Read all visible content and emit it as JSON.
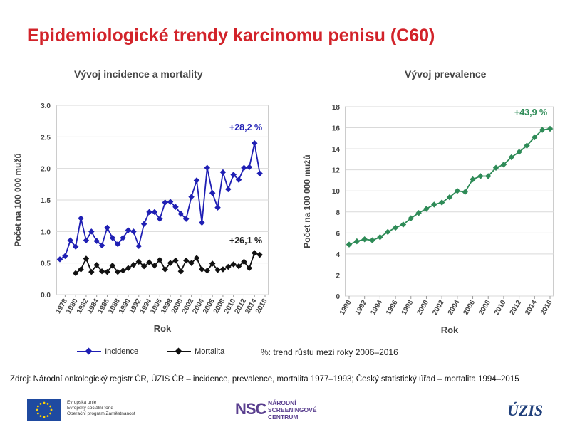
{
  "page": {
    "title": "Epidemiologické trendy karcinomu penisu (C60)",
    "note": "%: trend růstu mezi roky 2006–2016",
    "source": "Zdroj: Národní onkologický registr ČR, ÚZIS ČR – incidence, prevalence, mortalita 1977–1993; Český statistický úřad – mortalita 1994–2015",
    "logos": {
      "eu_lines": [
        "Evropská unie",
        "Evropský sociální fond",
        "Operační program Zaměstnanost"
      ],
      "nsc_mark": "NSC",
      "nsc_lines": [
        "NÁRODNÍ",
        "SCREENINGOVÉ",
        "CENTRUM"
      ],
      "uzis": "ÚZIS"
    }
  },
  "chart_data": [
    {
      "type": "line",
      "title": "Vývoj incidence a mortality",
      "xlabel": "Rok",
      "ylabel": "Počet na 100 000 mužů",
      "ylim": [
        0,
        3
      ],
      "yticks": [
        "0.0",
        "0.5",
        "1.0",
        "1.5",
        "2.0",
        "2.5",
        "3.0"
      ],
      "x": [
        1977,
        1978,
        1979,
        1980,
        1981,
        1982,
        1983,
        1984,
        1985,
        1986,
        1987,
        1988,
        1989,
        1990,
        1991,
        1992,
        1993,
        1994,
        1995,
        1996,
        1997,
        1998,
        1999,
        2000,
        2001,
        2002,
        2003,
        2004,
        2005,
        2006,
        2007,
        2008,
        2009,
        2010,
        2011,
        2012,
        2013,
        2014,
        2015,
        2016
      ],
      "xtick_labels": [
        "1978",
        "1980",
        "1982",
        "1984",
        "1986",
        "1988",
        "1990",
        "1992",
        "1994",
        "1996",
        "1998",
        "2000",
        "2002",
        "2004",
        "2006",
        "2008",
        "2010",
        "2012",
        "2014",
        "2016"
      ],
      "series": [
        {
          "name": "Incidence",
          "color": "#1f1fb4",
          "values": [
            0.56,
            0.61,
            0.86,
            0.76,
            1.21,
            0.86,
            1.0,
            0.85,
            0.78,
            1.06,
            0.9,
            0.8,
            0.9,
            1.02,
            1.0,
            0.77,
            1.12,
            1.31,
            1.31,
            1.2,
            1.46,
            1.47,
            1.39,
            1.28,
            1.2,
            1.55,
            1.81,
            1.14,
            2.01,
            1.61,
            1.38,
            1.94,
            1.67,
            1.9,
            1.82,
            2.01,
            2.02,
            2.4,
            1.92,
            null
          ]
        },
        {
          "name": "Mortalita",
          "color": "#111111",
          "values": [
            null,
            null,
            null,
            0.34,
            0.4,
            0.57,
            0.36,
            0.47,
            0.37,
            0.36,
            0.46,
            0.36,
            0.38,
            0.42,
            0.47,
            0.52,
            0.45,
            0.51,
            0.46,
            0.55,
            0.4,
            0.5,
            0.54,
            0.37,
            0.54,
            0.5,
            0.58,
            0.4,
            0.38,
            0.49,
            0.39,
            0.4,
            0.44,
            0.48,
            0.45,
            0.52,
            0.42,
            0.66,
            0.63,
            null
          ]
        }
      ],
      "annotations": [
        {
          "text": "+28,2 %",
          "color": "#1f1fb4"
        },
        {
          "text": "+26,1 %",
          "color": "#222222"
        }
      ],
      "legend": "bottom"
    },
    {
      "type": "line",
      "title": "Vývoj prevalence",
      "xlabel": "Rok",
      "ylabel": "Počet na 100 000 mužů",
      "ylim": [
        0,
        18
      ],
      "yticks": [
        "0",
        "2",
        "4",
        "6",
        "8",
        "10",
        "12",
        "14",
        "16",
        "18"
      ],
      "x": [
        1990,
        1991,
        1992,
        1993,
        1994,
        1995,
        1996,
        1997,
        1998,
        1999,
        2000,
        2001,
        2002,
        2003,
        2004,
        2005,
        2006,
        2007,
        2008,
        2009,
        2010,
        2011,
        2012,
        2013,
        2014,
        2015,
        2016
      ],
      "xtick_labels": [
        "1990",
        "1992",
        "1994",
        "1996",
        "1998",
        "2000",
        "2002",
        "2004",
        "2006",
        "2008",
        "2010",
        "2012",
        "2014",
        "2016"
      ],
      "series": [
        {
          "name": "",
          "color": "#2e8b57",
          "values": [
            4.9,
            5.2,
            5.4,
            5.3,
            5.6,
            6.1,
            6.5,
            6.8,
            7.4,
            7.9,
            8.3,
            8.7,
            8.9,
            9.4,
            10.0,
            9.9,
            11.1,
            11.4,
            11.4,
            12.2,
            12.5,
            13.2,
            13.7,
            14.3,
            15.1,
            15.8,
            15.9
          ]
        }
      ],
      "annotations": [
        {
          "text": "+43,9 %",
          "color": "#2e8b57"
        }
      ]
    }
  ]
}
